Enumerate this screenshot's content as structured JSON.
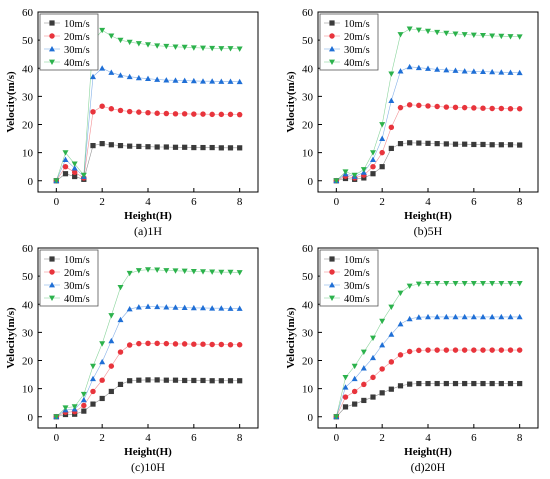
{
  "chart_data": [
    {
      "type": "scatter",
      "caption": "(a)1H",
      "xlabel": "Height(H)",
      "ylabel": "Velocity(m/s)",
      "xlim": [
        -0.8,
        8.8
      ],
      "ylim": [
        -4,
        60
      ],
      "xticks": [
        0,
        2,
        4,
        6,
        8
      ],
      "yticks": [
        0,
        10,
        20,
        30,
        40,
        50,
        60
      ],
      "grid": false,
      "legend": "top-left",
      "x": [
        0,
        0.4,
        0.8,
        1.2,
        1.6,
        2.0,
        2.4,
        2.8,
        3.2,
        3.6,
        4.0,
        4.4,
        4.8,
        5.2,
        5.6,
        6.0,
        6.4,
        6.8,
        7.2,
        7.6,
        8.0
      ],
      "series": [
        {
          "name": "10m/s",
          "values": [
            0,
            2.5,
            1.5,
            0.5,
            12.5,
            13.2,
            12.8,
            12.5,
            12.3,
            12.2,
            12.1,
            12.0,
            12.0,
            11.9,
            11.9,
            11.8,
            11.8,
            11.8,
            11.7,
            11.7,
            11.7
          ]
        },
        {
          "name": "20m/s",
          "values": [
            0,
            5.0,
            3.0,
            1.0,
            24.5,
            26.5,
            25.6,
            25.0,
            24.6,
            24.4,
            24.2,
            24.0,
            23.9,
            23.8,
            23.8,
            23.7,
            23.7,
            23.6,
            23.6,
            23.6,
            23.5
          ]
        },
        {
          "name": "30m/s",
          "values": [
            0,
            7.5,
            4.5,
            1.5,
            37.0,
            40.0,
            38.5,
            37.5,
            37.0,
            36.6,
            36.3,
            36.0,
            35.8,
            35.7,
            35.6,
            35.5,
            35.4,
            35.4,
            35.3,
            35.3,
            35.2
          ]
        },
        {
          "name": "40m/s",
          "values": [
            0,
            10.0,
            6.0,
            2.0,
            49.5,
            53.5,
            51.5,
            50.0,
            49.3,
            48.8,
            48.4,
            48.0,
            47.8,
            47.6,
            47.5,
            47.3,
            47.2,
            47.1,
            47.0,
            47.0,
            46.9
          ]
        }
      ]
    },
    {
      "type": "scatter",
      "caption": "(b)5H",
      "xlabel": "Height(H)",
      "ylabel": "Velocity(m/s)",
      "xlim": [
        -0.8,
        8.8
      ],
      "ylim": [
        -4,
        60
      ],
      "xticks": [
        0,
        2,
        4,
        6,
        8
      ],
      "yticks": [
        0,
        10,
        20,
        30,
        40,
        50,
        60
      ],
      "grid": false,
      "legend": "top-left",
      "x": [
        0,
        0.4,
        0.8,
        1.2,
        1.6,
        2.0,
        2.4,
        2.8,
        3.2,
        3.6,
        4.0,
        4.4,
        4.8,
        5.2,
        5.6,
        6.0,
        6.4,
        6.8,
        7.2,
        7.6,
        8.0
      ],
      "series": [
        {
          "name": "10m/s",
          "values": [
            0,
            0.8,
            0.5,
            1.0,
            2.5,
            5.0,
            11.5,
            13.2,
            13.5,
            13.4,
            13.3,
            13.2,
            13.1,
            13.0,
            13.0,
            12.9,
            12.9,
            12.8,
            12.8,
            12.8,
            12.7
          ]
        },
        {
          "name": "20m/s",
          "values": [
            0,
            1.6,
            1.0,
            2.0,
            5.0,
            10.0,
            19.0,
            26.0,
            27.0,
            26.8,
            26.6,
            26.4,
            26.2,
            26.1,
            26.0,
            25.9,
            25.8,
            25.7,
            25.7,
            25.6,
            25.6
          ]
        },
        {
          "name": "30m/s",
          "values": [
            0,
            2.4,
            1.5,
            3.0,
            7.5,
            15.0,
            28.5,
            39.0,
            40.5,
            40.2,
            39.9,
            39.6,
            39.4,
            39.2,
            39.0,
            38.9,
            38.8,
            38.7,
            38.6,
            38.5,
            38.4
          ]
        },
        {
          "name": "40m/s",
          "values": [
            0,
            3.2,
            2.0,
            4.0,
            10.0,
            20.0,
            38.0,
            52.0,
            54.0,
            53.6,
            53.2,
            52.8,
            52.5,
            52.2,
            52.0,
            51.8,
            51.7,
            51.5,
            51.4,
            51.3,
            51.2
          ]
        }
      ]
    },
    {
      "type": "scatter",
      "caption": "(c)10H",
      "xlabel": "Height(H)",
      "ylabel": "Velocity(m/s)",
      "xlim": [
        -0.8,
        8.8
      ],
      "ylim": [
        -4,
        60
      ],
      "xticks": [
        0,
        2,
        4,
        6,
        8
      ],
      "yticks": [
        0,
        10,
        20,
        30,
        40,
        50,
        60
      ],
      "grid": false,
      "legend": "top-left",
      "x": [
        0,
        0.4,
        0.8,
        1.2,
        1.6,
        2.0,
        2.4,
        2.8,
        3.2,
        3.6,
        4.0,
        4.4,
        4.8,
        5.2,
        5.6,
        6.0,
        6.4,
        6.8,
        7.2,
        7.6,
        8.0
      ],
      "series": [
        {
          "name": "10m/s",
          "values": [
            0,
            0.8,
            0.9,
            2.0,
            4.5,
            6.5,
            9.0,
            11.5,
            12.8,
            13.0,
            13.1,
            13.1,
            13.0,
            13.0,
            12.9,
            12.9,
            12.9,
            12.8,
            12.8,
            12.8,
            12.8
          ]
        },
        {
          "name": "20m/s",
          "values": [
            0,
            1.6,
            1.8,
            4.0,
            9.0,
            13.0,
            18.0,
            23.0,
            25.5,
            26.0,
            26.1,
            26.1,
            26.0,
            25.9,
            25.9,
            25.8,
            25.8,
            25.7,
            25.7,
            25.6,
            25.6
          ]
        },
        {
          "name": "30m/s",
          "values": [
            0,
            2.4,
            2.7,
            6.0,
            13.5,
            19.5,
            27.0,
            34.5,
            38.3,
            39.0,
            39.2,
            39.1,
            39.0,
            38.9,
            38.8,
            38.7,
            38.7,
            38.6,
            38.6,
            38.5,
            38.5
          ]
        },
        {
          "name": "40m/s",
          "values": [
            0,
            3.2,
            3.6,
            8.0,
            18.0,
            26.0,
            36.0,
            46.0,
            51.0,
            52.0,
            52.3,
            52.2,
            52.0,
            51.9,
            51.8,
            51.7,
            51.6,
            51.5,
            51.4,
            51.4,
            51.3
          ]
        }
      ]
    },
    {
      "type": "scatter",
      "caption": "(d)20H",
      "xlabel": "Height(H)",
      "ylabel": "Velocity(m/s)",
      "xlim": [
        -0.8,
        8.8
      ],
      "ylim": [
        -4,
        60
      ],
      "xticks": [
        0,
        2,
        4,
        6,
        8
      ],
      "yticks": [
        0,
        10,
        20,
        30,
        40,
        50,
        60
      ],
      "grid": false,
      "legend": "top-left",
      "x": [
        0,
        0.4,
        0.8,
        1.2,
        1.6,
        2.0,
        2.4,
        2.8,
        3.2,
        3.6,
        4.0,
        4.4,
        4.8,
        5.2,
        5.6,
        6.0,
        6.4,
        6.8,
        7.2,
        7.6,
        8.0
      ],
      "series": [
        {
          "name": "10m/s",
          "values": [
            0,
            3.5,
            4.5,
            5.8,
            7.0,
            8.5,
            9.8,
            11.0,
            11.6,
            11.8,
            11.8,
            11.8,
            11.8,
            11.8,
            11.8,
            11.8,
            11.8,
            11.8,
            11.8,
            11.8,
            11.8
          ]
        },
        {
          "name": "20m/s",
          "values": [
            0,
            7.0,
            9.0,
            11.5,
            14.0,
            17.0,
            19.5,
            22.0,
            23.2,
            23.6,
            23.7,
            23.7,
            23.7,
            23.7,
            23.7,
            23.7,
            23.7,
            23.7,
            23.7,
            23.7,
            23.7
          ]
        },
        {
          "name": "30m/s",
          "values": [
            0,
            10.5,
            13.5,
            17.3,
            21.0,
            25.5,
            29.3,
            33.0,
            34.8,
            35.4,
            35.5,
            35.5,
            35.5,
            35.5,
            35.5,
            35.5,
            35.5,
            35.5,
            35.5,
            35.5,
            35.5
          ]
        },
        {
          "name": "40m/s",
          "values": [
            0,
            14.0,
            18.0,
            23.0,
            28.0,
            34.0,
            39.0,
            44.0,
            46.5,
            47.2,
            47.4,
            47.4,
            47.4,
            47.4,
            47.4,
            47.4,
            47.4,
            47.4,
            47.4,
            47.4,
            47.4
          ]
        }
      ]
    }
  ],
  "series_colors": [
    "#3a3a3a",
    "#e8343c",
    "#1f6fd6",
    "#2cb24c"
  ],
  "series_markers": [
    "square",
    "circle",
    "triangle-up",
    "triangle-down"
  ]
}
